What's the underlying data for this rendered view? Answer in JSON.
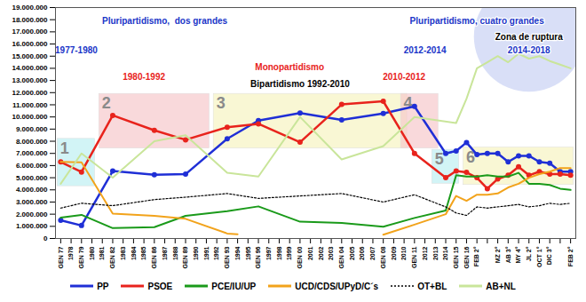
{
  "chart_data": {
    "type": "line",
    "categories": [
      "GEN 77",
      "1978",
      "GEN 79",
      "1980",
      "1981",
      "GEN 82",
      "1983",
      "1984",
      "1985",
      "GEN 86",
      "1987",
      "1988",
      "GEN 89",
      "1990",
      "1991",
      "1992",
      "GEN 93",
      "1994",
      "1995",
      "GEN 96",
      "1997",
      "1998",
      "1999",
      "GEN 00",
      "2001",
      "2002",
      "2003",
      "GEN 04",
      "2005",
      "2006",
      "2007",
      "GEN 08",
      "2009",
      "2010",
      "GEN 11",
      "2012",
      "2013",
      "2014",
      "GEN 15",
      "GEN 16",
      "FEB 2°",
      null,
      "MZ 2°",
      "AB 3°",
      "MY 4°",
      "JL 2°",
      "OCT 1°",
      "DIC 3°",
      null,
      "FEB 2°"
    ],
    "ylim": [
      0,
      19000000
    ],
    "yticks": [
      0,
      {
        "value": 1000000,
        "label": "1.000.000"
      },
      {
        "value": 2000000,
        "label": "2.000.000"
      },
      {
        "value": 3000000,
        "label": "3.000.000"
      },
      {
        "value": 4000000,
        "label": "4.000.000"
      },
      {
        "value": 5000000,
        "label": "5.000.000"
      },
      {
        "value": 6000000,
        "label": "6.000.000"
      },
      {
        "value": 7000000,
        "label": "7.000.000"
      },
      {
        "value": 8000000,
        "label": "8.000.000"
      },
      {
        "value": 9000000,
        "label": "9.000.000"
      },
      {
        "value": 10000000,
        "label": "10.000.000"
      },
      {
        "value": 11000000,
        "label": "11.000.000"
      },
      {
        "value": 12000000,
        "label": "12.000.000"
      },
      {
        "value": 13000000,
        "label": "13.000.000"
      },
      {
        "value": 14000000,
        "label": "14.000.000"
      },
      {
        "value": 15000000,
        "label": "15.000.000"
      },
      {
        "value": 16000000,
        "label": "16.000.000"
      },
      {
        "value": 17000000,
        "label": "17.000.000"
      },
      {
        "value": 18000000,
        "label": "18.000.000"
      },
      {
        "value": 19000000,
        "label": "19.000.000"
      }
    ],
    "grid": false,
    "legend": "bottom",
    "series": [
      {
        "name": "PP",
        "color": "#1f2fd6",
        "line_style": "solid",
        "marker": "circle",
        "x": [
          0,
          2,
          5,
          9,
          12,
          16,
          19,
          23,
          27,
          31,
          34,
          37,
          38,
          39,
          40,
          41,
          42,
          43,
          44,
          45,
          46,
          47,
          48,
          49
        ],
        "values": [
          1500000,
          1070000,
          5550000,
          5250000,
          5290000,
          8200000,
          9700000,
          10320000,
          9760000,
          10280000,
          10870000,
          7000000,
          7200000,
          7900000,
          6900000,
          7000000,
          7000000,
          6300000,
          6800000,
          6800000,
          6300000,
          6200000,
          5500000,
          5500000
        ]
      },
      {
        "name": "PSOE",
        "color": "#e8231c",
        "line_style": "solid",
        "marker": "circle",
        "x": [
          0,
          2,
          5,
          9,
          12,
          16,
          19,
          23,
          27,
          31,
          34,
          37,
          38,
          39,
          40,
          41,
          42,
          43,
          44,
          45,
          46,
          47,
          48,
          49
        ],
        "values": [
          6300000,
          5470000,
          10130000,
          8900000,
          8120000,
          9150000,
          9430000,
          7920000,
          11030000,
          11290000,
          7000000,
          5000000,
          5550000,
          5440000,
          5000000,
          4100000,
          4900000,
          5200000,
          5900000,
          5200000,
          5500000,
          5300000,
          5300000,
          5200000
        ]
      },
      {
        "name": "PCE/IU/UP",
        "color": "#1a9a1a",
        "line_style": "solid",
        "marker": "none",
        "x": [
          0,
          2,
          5,
          9,
          12,
          16,
          19,
          23,
          27,
          31,
          34,
          37,
          38,
          39,
          40,
          41,
          42,
          43,
          44,
          45,
          46,
          47,
          48,
          49
        ],
        "values": [
          1710000,
          1940000,
          850000,
          930000,
          1860000,
          2250000,
          2640000,
          1380000,
          1280000,
          970000,
          1690000,
          2300000,
          5200000,
          5100000,
          5100000,
          5200000,
          5100000,
          5100000,
          5400000,
          4500000,
          4500000,
          4400000,
          4100000,
          4000000
        ]
      },
      {
        "name": "UCD/CDS/UPyD/C´s",
        "color": "#f2a31b",
        "line_style": "solid",
        "marker": "none",
        "x": [
          0,
          2,
          5,
          9,
          12,
          16,
          17,
          24,
          31,
          34,
          37,
          38,
          39,
          40,
          41,
          42,
          43,
          44,
          45,
          46,
          47,
          48,
          49
        ],
        "values": [
          6310000,
          6270000,
          2050000,
          1860000,
          1620000,
          410000,
          350000,
          null,
          310000,
          1140000,
          2000000,
          3500000,
          3100000,
          3600000,
          3600000,
          3700000,
          4200000,
          4500000,
          5000000,
          5300000,
          5500000,
          5800000,
          5800000
        ]
      },
      {
        "name": "OT+BL",
        "color": "#000000",
        "line_style": "dotted",
        "marker": "none",
        "x": [
          0,
          2,
          5,
          9,
          12,
          16,
          19,
          23,
          27,
          31,
          34,
          37,
          38,
          39,
          40,
          41,
          42,
          43,
          44,
          45,
          46,
          47,
          48,
          49
        ],
        "values": [
          2500000,
          2900000,
          2700000,
          3200000,
          3400000,
          3700000,
          3300000,
          3500000,
          3700000,
          3000000,
          3600000,
          2600000,
          2100000,
          1900000,
          2600000,
          2500000,
          2600000,
          2700000,
          2800000,
          2600000,
          2700000,
          2900000,
          2800000,
          2900000
        ]
      },
      {
        "name": "AB+NL",
        "color": "#c9e59a",
        "line_style": "solid",
        "marker": "none",
        "x": [
          0,
          2,
          5,
          9,
          12,
          16,
          19,
          23,
          27,
          31,
          34,
          38,
          39,
          40,
          41,
          42,
          43,
          44,
          45,
          46,
          47,
          48,
          49
        ],
        "values": [
          4500000,
          7000000,
          5000000,
          8000000,
          8500000,
          5400000,
          5100000,
          10000000,
          6500000,
          7600000,
          10000000,
          9500000,
          11500000,
          14000000,
          14500000,
          15000000,
          14500000,
          15200000,
          14800000,
          15000000,
          14600000,
          14300000,
          14000000
        ]
      }
    ],
    "boxes": [
      {
        "label": "1",
        "from": "GEN 77",
        "to": "1980",
        "y1": 4300000,
        "y2": 8200000,
        "color": "#bfeff2"
      },
      {
        "label": "2",
        "from": "1981",
        "to": "1991",
        "y1": 7400000,
        "y2": 11900000,
        "color": "#f6c9cc"
      },
      {
        "label": "3",
        "from": "1992",
        "to": "2010",
        "y1": 7400000,
        "y2": 11900000,
        "color": "#f7f4c2"
      },
      {
        "label": "4",
        "from": "2010",
        "to": "2013",
        "y1": 7400000,
        "y2": 11900000,
        "color": "#f6c9cc"
      },
      {
        "label": "5",
        "from": "2013",
        "to": "GEN 15",
        "y1": 4500000,
        "y2": 7300000,
        "color": "#bfeff2"
      },
      {
        "label": "6",
        "from": "GEN 16",
        "to": "FEB 2°",
        "y1": 4400000,
        "y2": 7500000,
        "color": "#f7f4c2"
      }
    ],
    "annotations": [
      {
        "text": "Pluripartidismo,  dos grandes",
        "x": 10,
        "y": 17900000,
        "color": "#1a35c8"
      },
      {
        "text": "1977-1980",
        "x": 1.5,
        "y": 15500000,
        "color": "#1a35c8"
      },
      {
        "text": "Monopartidismo",
        "x": 22,
        "y": 14100000,
        "color": "#e8231c"
      },
      {
        "text": "1980-1992",
        "x": 8,
        "y": 13300000,
        "color": "#e8231c"
      },
      {
        "text": "Bipartidismo 1992-2010",
        "x": 23,
        "y": 12700000,
        "color": "#000000"
      },
      {
        "text": "2010-2012",
        "x": 33,
        "y": 13300000,
        "color": "#e8231c"
      },
      {
        "text": "2012-2014",
        "x": 35,
        "y": 15500000,
        "color": "#1a35c8"
      },
      {
        "text": "Pluripartidismo, cuatro grandes",
        "x": 40,
        "y": 17900000,
        "color": "#1a35c8"
      },
      {
        "text": "Zona de ruptura",
        "x": 45,
        "y": 16600000,
        "color": "#000000"
      },
      {
        "text": "2014-2018",
        "x": 45,
        "y": 15500000,
        "color": "#1a35c8"
      }
    ]
  }
}
